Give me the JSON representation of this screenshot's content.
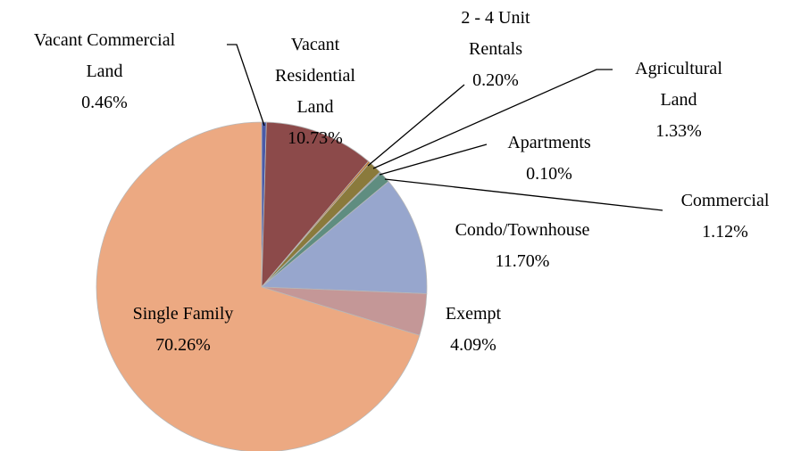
{
  "chart_data": {
    "type": "pie",
    "categories": [
      "Vacant Commercial Land",
      "Vacant Residential Land",
      "2 - 4 Unit Rentals",
      "Agricultural Land",
      "Apartments",
      "Commercial",
      "Condo/Townhouse",
      "Exempt",
      "Single Family"
    ],
    "values": [
      0.46,
      10.73,
      0.2,
      1.33,
      0.1,
      1.12,
      11.7,
      4.09,
      70.26
    ],
    "value_labels": [
      "0.46%",
      "10.73%",
      "0.20%",
      "1.33%",
      "0.10%",
      "1.12%",
      "11.70%",
      "4.09%",
      "70.26%"
    ],
    "colors": [
      "#4a5aa8",
      "#8c4a4a",
      "#c2782e",
      "#8a7a3c",
      "#4f7fa2",
      "#5f8d80",
      "#97a6cd",
      "#c49797",
      "#eca982"
    ]
  }
}
